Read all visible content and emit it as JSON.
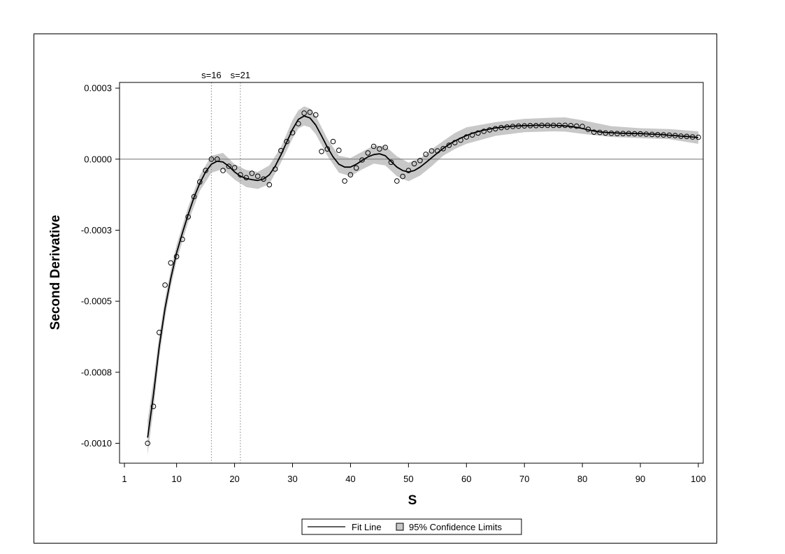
{
  "colors": {
    "band": "#c8c8c8",
    "line": "#000000",
    "zero_line": "#808080",
    "ref_line": "#808080"
  },
  "chart_data": {
    "type": "scatter",
    "xlabel": "S",
    "ylabel": "Second Derivative",
    "xlim": [
      1,
      100
    ],
    "ylim": [
      -0.00107,
      0.00027
    ],
    "x_ticks": [
      1,
      10,
      20,
      30,
      40,
      50,
      60,
      70,
      80,
      90,
      100
    ],
    "y_ticks": [
      {
        "value": 0.00025,
        "label": "0.0003"
      },
      {
        "value": 0.0,
        "label": "0.0000"
      },
      {
        "value": -0.00025,
        "label": "-0.0003"
      },
      {
        "value": -0.0005,
        "label": "-0.0005"
      },
      {
        "value": -0.00075,
        "label": "-0.0008"
      },
      {
        "value": -0.001,
        "label": "-0.0010"
      }
    ],
    "reference_lines": [
      {
        "x": 16,
        "label": "s=16"
      },
      {
        "x": 21,
        "label": "s=21"
      }
    ],
    "zero_line": 0.0,
    "grid": false,
    "legend": {
      "position": "bottom",
      "entries": [
        {
          "label": "Fit Line",
          "type": "line"
        },
        {
          "label": "95% Confidence Limits",
          "type": "band"
        }
      ]
    },
    "observed": {
      "x": [
        5,
        6,
        7,
        8,
        9,
        10,
        11,
        12,
        13,
        14,
        15,
        16,
        17,
        18,
        19,
        20,
        21,
        22,
        23,
        24,
        25,
        26,
        27,
        28,
        29,
        30,
        31,
        32,
        33,
        34,
        35,
        36,
        37,
        38,
        39,
        40,
        41,
        42,
        43,
        44,
        45,
        46,
        47,
        48,
        49,
        50,
        51,
        52,
        53,
        54,
        55,
        56,
        57,
        58,
        59,
        60,
        61,
        62,
        63,
        64,
        65,
        66,
        67,
        68,
        69,
        70,
        71,
        72,
        73,
        74,
        75,
        76,
        77,
        78,
        79,
        80,
        81,
        82,
        83,
        84,
        85,
        86,
        87,
        88,
        89,
        90,
        91,
        92,
        93,
        94,
        95,
        96,
        97,
        98,
        99,
        100
      ],
      "y": [
        -0.001,
        -0.00087,
        -0.00061,
        -0.000443,
        -0.000365,
        -0.000343,
        -0.000282,
        -0.000203,
        -0.000132,
        -8e-05,
        -4e-05,
        0.0,
        0.0,
        -4e-05,
        -2.5e-05,
        -3e-05,
        -5.5e-05,
        -6.5e-05,
        -5e-05,
        -6e-05,
        -7e-05,
        -9e-05,
        -3.5e-05,
        3e-05,
        6.2e-05,
        9.3e-05,
        0.000125,
        0.000162,
        0.000165,
        0.000156,
        2.7e-05,
        3.6e-05,
        6.2e-05,
        3.1e-05,
        -7.7e-05,
        -5.5e-05,
        -3.1e-05,
        -3e-06,
        2.2e-05,
        4.5e-05,
        3.6e-05,
        4.1e-05,
        -1.1e-05,
        -7.7e-05,
        -6.1e-05,
        -4e-05,
        -1.6e-05,
        -5e-06,
        1.7e-05,
        2.9e-05,
        2.9e-05,
        3.7e-05,
        4.9e-05,
        5.8e-05,
        6.7e-05,
        7.8e-05,
        8.5e-05,
        9.2e-05,
        9.8e-05,
        0.000103,
        0.000107,
        0.000111,
        0.000113,
        0.000115,
        0.000116,
        0.000117,
        0.000118,
        0.000118,
        0.000119,
        0.000119,
        0.000119,
        0.000119,
        0.000119,
        0.000118,
        0.000116,
        0.000115,
        0.000105,
        9.5e-05,
        9.4e-05,
        9.2e-05,
        9.1e-05,
        9e-05,
        9e-05,
        9e-05,
        8.9e-05,
        8.9e-05,
        8.8e-05,
        8.7e-05,
        8.6e-05,
        8.5e-05,
        8.4e-05,
        8.3e-05,
        8.1e-05,
        8e-05,
        7.8e-05,
        7.7e-05
      ]
    },
    "fit_line": {
      "x": [
        5,
        6,
        7,
        8,
        9,
        10,
        11,
        12,
        13,
        14,
        15,
        16,
        17,
        18,
        19,
        20,
        21,
        22,
        23,
        24,
        25,
        26,
        27,
        28,
        29,
        30,
        31,
        32,
        33,
        34,
        35,
        36,
        37,
        38,
        39,
        40,
        41,
        42,
        43,
        44,
        45,
        46,
        47,
        48,
        49,
        50,
        51,
        52,
        53,
        54,
        55,
        56,
        57,
        58,
        59,
        60,
        61,
        62,
        63,
        64,
        65,
        66,
        67,
        68,
        69,
        70,
        71,
        72,
        73,
        74,
        75,
        76,
        77,
        78,
        79,
        80,
        81,
        82,
        83,
        84,
        85,
        86,
        87,
        88,
        89,
        90,
        91,
        92,
        93,
        94,
        95,
        96,
        97,
        98,
        99,
        100
      ],
      "y": [
        -0.00098,
        -0.00083,
        -0.00066,
        -0.000525,
        -0.00042,
        -0.00033,
        -0.00026,
        -0.000195,
        -0.000135,
        -8.5e-05,
        -4.5e-05,
        -1.8e-05,
        -7e-06,
        -1e-05,
        -2.5e-05,
        -4.5e-05,
        -6e-05,
        -6.8e-05,
        -7.2e-05,
        -7.5e-05,
        -7e-05,
        -5.5e-05,
        -2.5e-05,
        1.5e-05,
        6e-05,
        0.000105,
        0.00014,
        0.000152,
        0.000145,
        0.00012,
        8.2e-05,
        4.2e-05,
        8e-06,
        -1.8e-05,
        -2.8e-05,
        -2.8e-05,
        -1.8e-05,
        -5e-06,
        8e-06,
        1.6e-05,
        1.9e-05,
        1.2e-05,
        -8e-06,
        -2.8e-05,
        -4e-05,
        -4.5e-05,
        -4e-05,
        -2.8e-05,
        -1.2e-05,
        5e-06,
        2.2e-05,
        3.8e-05,
        5.2e-05,
        6.4e-05,
        7.4e-05,
        8.3e-05,
        9.1e-05,
        9.7e-05,
        0.000102,
        0.000106,
        0.00011,
        0.000112,
        0.000114,
        0.000116,
        0.000117,
        0.000118,
        0.000118,
        0.000119,
        0.000119,
        0.000119,
        0.000119,
        0.000118,
        0.000117,
        0.000115,
        0.000112,
        0.000108,
        0.000103,
        9.9e-05,
        9.6e-05,
        9.4e-05,
        9.3e-05,
        9.2e-05,
        9.1e-05,
        9.1e-05,
        9e-05,
        9e-05,
        8.9e-05,
        8.8e-05,
        8.7e-05,
        8.6e-05,
        8.4e-05,
        8.3e-05,
        8.1e-05,
        8e-05,
        7.8e-05,
        7.6e-05
      ]
    },
    "confidence_band": {
      "x": [
        5,
        6,
        7,
        8,
        9,
        10,
        12,
        14,
        16,
        18,
        20,
        22,
        24,
        26,
        28,
        30,
        31,
        32,
        33,
        34,
        36,
        38,
        40,
        42,
        44,
        46,
        48,
        50,
        52,
        54,
        56,
        58,
        60,
        65,
        70,
        75,
        77,
        80,
        85,
        90,
        95,
        100
      ],
      "lower": [
        -0.00104,
        -0.00088,
        -0.0007,
        -0.000558,
        -0.00045,
        -0.000358,
        -0.000222,
        -0.000112,
        -4.8e-05,
        -3.5e-05,
        -7.2e-05,
        -9.8e-05,
        -0.000105,
        -8.8e-05,
        -1.2e-05,
        7.2e-05,
        0.000108,
        0.000118,
        0.000112,
        8.8e-05,
        1.2e-05,
        -4.8e-05,
        -6e-05,
        -3.6e-05,
        -1.6e-05,
        -2.2e-05,
        -6e-05,
        -7.8e-05,
        -5.8e-05,
        -2.5e-05,
        1.2e-05,
        3.6e-05,
        5.4e-05,
        8.2e-05,
        9.5e-05,
        9.8e-05,
        9.7e-05,
        8.9e-05,
        7.8e-05,
        7.4e-05,
        7e-05,
        5.4e-05
      ],
      "upper": [
        -0.00092,
        -0.00078,
        -0.00062,
        -0.000492,
        -0.00039,
        -0.000302,
        -0.000168,
        -5.8e-05,
        1.2e-05,
        2.2e-05,
        -1.8e-05,
        -3.8e-05,
        -4.5e-05,
        -2.2e-05,
        4.2e-05,
        0.000138,
        0.000172,
        0.000186,
        0.000178,
        0.000152,
        7.2e-05,
        1.2e-05,
        4e-06,
        2.6e-05,
        4.8e-05,
        4.6e-05,
        1e-05,
        -1.2e-05,
        2e-06,
        3.5e-05,
        6.4e-05,
        9.2e-05,
        0.000112,
        0.00013,
        0.000142,
        0.000146,
        0.000147,
        0.000137,
        0.000116,
        0.000109,
        0.000106,
        9.8e-05
      ]
    }
  }
}
